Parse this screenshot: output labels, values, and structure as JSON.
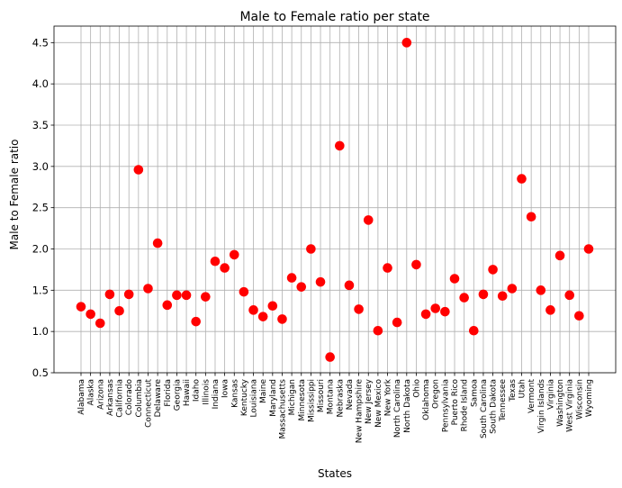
{
  "chart_data": {
    "type": "scatter",
    "title": "Male to Female ratio per state",
    "xlabel": "States",
    "ylabel": "Male to Female ratio",
    "ylim": [
      0.5,
      4.7
    ],
    "yticks": [
      "0.5",
      "1.0",
      "1.5",
      "2.0",
      "2.5",
      "3.0",
      "3.5",
      "4.0",
      "4.5"
    ],
    "grid": true,
    "marker_color": "#ff0000",
    "categories": [
      "Alabama",
      "Alaska",
      "Arizona",
      "Arkansas",
      "California",
      "Colorado",
      "Columbia",
      "Connecticut",
      "Delaware",
      "Florida",
      "Georgia",
      "Hawaii",
      "Idaho",
      "Illinois",
      "Indiana",
      "Iowa",
      "Kansas",
      "Kentucky",
      "Louisiana",
      "Maine",
      "Maryland",
      "Massachusetts",
      "Michigan",
      "Minnesota",
      "Mississippi",
      "Missouri",
      "Montana",
      "Nebraska",
      "Nevada",
      "New Hampshire",
      "New Jersey",
      "New Mexico",
      "New York",
      "North Carolina",
      "North Dakota",
      "Ohio",
      "Oklahoma",
      "Oregon",
      "Pennsylvania",
      "Puerto Rico",
      "Rhode Island",
      "Samoa",
      "South Carolina",
      "South Dakota",
      "Tennessee",
      "Texas",
      "Utah",
      "Vermont",
      "Virgin Islands",
      "Virginia",
      "Washington",
      "West Virginia",
      "Wisconsin",
      "Wyoming"
    ],
    "values": [
      1.3,
      1.21,
      1.1,
      1.45,
      1.25,
      1.45,
      2.96,
      1.52,
      2.07,
      1.32,
      1.44,
      1.44,
      1.12,
      1.42,
      1.85,
      1.77,
      1.93,
      1.48,
      1.26,
      1.18,
      1.31,
      1.15,
      1.65,
      1.54,
      2.0,
      1.6,
      0.69,
      3.25,
      1.56,
      1.27,
      2.35,
      1.01,
      1.77,
      1.11,
      4.5,
      1.81,
      1.21,
      1.28,
      1.24,
      1.64,
      1.41,
      1.01,
      1.45,
      1.75,
      1.43,
      1.52,
      2.85,
      2.39,
      1.5,
      1.26,
      1.92,
      1.44,
      1.19,
      2.0
    ]
  }
}
